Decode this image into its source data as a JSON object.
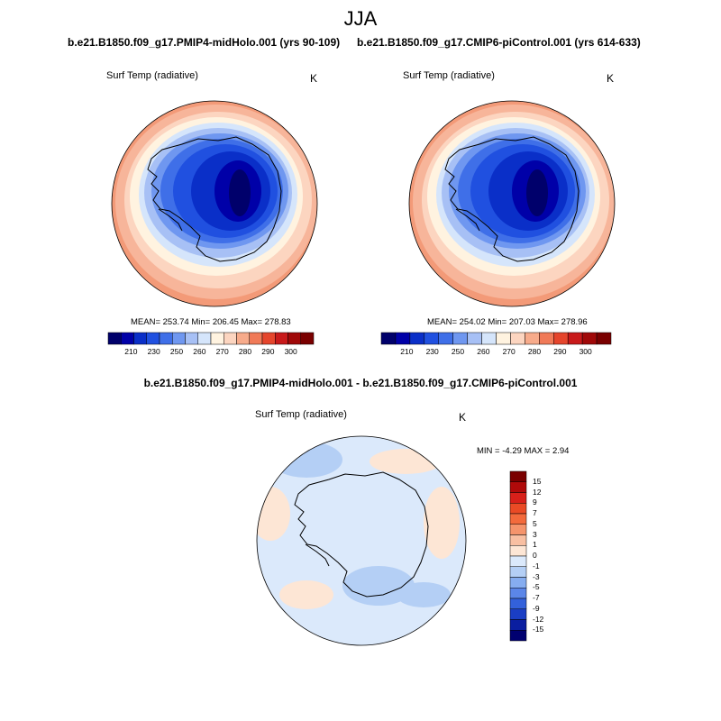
{
  "title": "JJA",
  "panels": [
    {
      "case_title": "b.e21.B1850.f09_g17.PMIP4-midHolo.001 (yrs 90-109)",
      "variable": "Surf Temp (radiative)",
      "units": "K",
      "stats": "MEAN= 253.74  Min= 206.45  Max= 278.83"
    },
    {
      "case_title": "b.e21.B1850.f09_g17.CMIP6-piControl.001 (yrs 614-633)",
      "variable": "Surf Temp (radiative)",
      "units": "K",
      "stats": "MEAN= 254.02  Min= 207.03  Max= 278.96"
    }
  ],
  "abs_colorbar": {
    "labels": [
      "210",
      "230",
      "250",
      "260",
      "270",
      "280",
      "290",
      "300"
    ],
    "colors": [
      "#00006b",
      "#0000a8",
      "#0a2fc8",
      "#2050e0",
      "#3f6fe8",
      "#6f97f0",
      "#a7c0f5",
      "#d5e5fb",
      "#fff3e0",
      "#fcd5c0",
      "#f7ab8b",
      "#f07a58",
      "#e5452c",
      "#c8191a",
      "#a00808",
      "#7a0000"
    ]
  },
  "diff_panel": {
    "case_title": "b.e21.B1850.f09_g17.PMIP4-midHolo.001 - b.e21.B1850.f09_g17.CMIP6-piControl.001",
    "variable": "Surf Temp (radiative)",
    "units": "K",
    "stats": "MIN =  -4.29 MAX =   2.94"
  },
  "diff_colorbar": {
    "labels": [
      "15",
      "12",
      "9",
      "7",
      "5",
      "3",
      "1",
      "0",
      "-1",
      "-3",
      "-5",
      "-7",
      "-9",
      "-12",
      "-15"
    ],
    "colors": [
      "#7a0000",
      "#b00a0a",
      "#d8201a",
      "#ea4a25",
      "#f36a3c",
      "#f5946c",
      "#f8bfa2",
      "#fde6d5",
      "#dbe9fb",
      "#b4cff5",
      "#86adf0",
      "#5b86e8",
      "#3361db",
      "#1a3ec4",
      "#0a1ea0",
      "#000070"
    ]
  }
}
